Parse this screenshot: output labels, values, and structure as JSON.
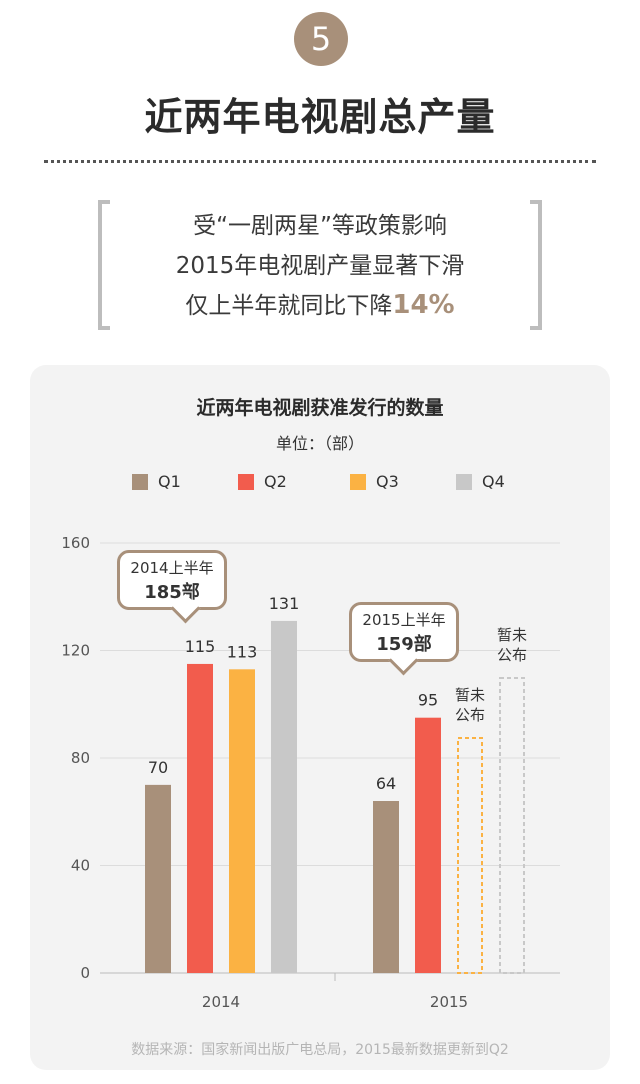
{
  "badge": {
    "number": "5"
  },
  "page_title": "近两年电视剧总产量",
  "quote": {
    "line1": "受“一剧两星”等政策影响",
    "line2": "2015年电视剧产量显著下滑",
    "line3_prefix": "仅上半年就同比下降",
    "line3_highlight": "14%"
  },
  "colors": {
    "q1": "#a8907a",
    "q2": "#f25c4d",
    "q3": "#fbb243",
    "q4": "#c8c8c8",
    "accent": "#a8907a"
  },
  "chart_data": {
    "type": "bar",
    "title": "近两年电视剧获准发行的数量",
    "unit": "单位：（部）",
    "categories": [
      "2014",
      "2015"
    ],
    "series": [
      {
        "name": "Q1",
        "values": [
          70,
          64
        ]
      },
      {
        "name": "Q2",
        "values": [
          115,
          95
        ]
      },
      {
        "name": "Q3",
        "values": [
          113,
          null
        ]
      },
      {
        "name": "Q4",
        "values": [
          131,
          null
        ]
      }
    ],
    "pending_label": "暂未公布",
    "pending_label_lines": [
      "暂未",
      "公布"
    ],
    "ylim": [
      0,
      160
    ],
    "yticks": [
      0,
      40,
      80,
      120,
      160
    ],
    "grid": true,
    "legend_position": "top",
    "callouts": [
      {
        "top": "2014上半年",
        "bottom": "185部"
      },
      {
        "top": "2015上半年",
        "bottom": "159部"
      }
    ]
  },
  "source_note": "数据来源：国家新闻出版广电总局，2015最新数据更新到Q2"
}
